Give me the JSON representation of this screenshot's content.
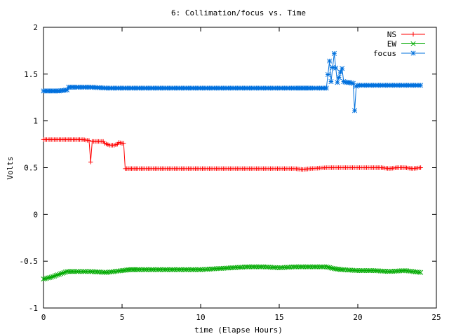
{
  "chart_data": {
    "type": "line",
    "title": "6: Collimation/focus vs. Time",
    "xlabel": "time (Elapse Hours)",
    "ylabel": "Volts",
    "xlim": [
      0,
      25
    ],
    "ylim": [
      -1,
      2
    ],
    "xticks": [
      "0",
      "5",
      "10",
      "15",
      "20",
      "25"
    ],
    "yticks": [
      "-1",
      "-0.5",
      "0",
      "0.5",
      "1",
      "1.5",
      "2"
    ],
    "legend_position": "top-right",
    "series": [
      {
        "name": "NS",
        "color": "#ff0000",
        "marker": "plus",
        "x": [
          0,
          0.5,
          1,
          1.5,
          2,
          2.5,
          2.9,
          3.0,
          3.1,
          3.5,
          3.8,
          3.9,
          4.2,
          4.5,
          4.7,
          4.8,
          5.0,
          5.1,
          5.2,
          5.5,
          6,
          7,
          8,
          9,
          10,
          11,
          12,
          13,
          14,
          15,
          16,
          16.5,
          17,
          18,
          19,
          20,
          21,
          21.5,
          22,
          22.5,
          23,
          23.5,
          24
        ],
        "y": [
          0.8,
          0.8,
          0.8,
          0.8,
          0.8,
          0.8,
          0.79,
          0.56,
          0.78,
          0.78,
          0.78,
          0.76,
          0.74,
          0.74,
          0.75,
          0.77,
          0.76,
          0.76,
          0.49,
          0.49,
          0.49,
          0.49,
          0.49,
          0.49,
          0.49,
          0.49,
          0.49,
          0.49,
          0.49,
          0.49,
          0.49,
          0.48,
          0.49,
          0.5,
          0.5,
          0.5,
          0.5,
          0.5,
          0.49,
          0.5,
          0.5,
          0.49,
          0.5
        ]
      },
      {
        "name": "EW",
        "color": "#00aa00",
        "marker": "cross",
        "x": [
          0,
          0.5,
          1,
          1.5,
          2,
          3,
          4,
          5,
          5.5,
          6,
          7,
          8,
          9,
          10,
          11,
          12,
          13,
          14,
          15,
          16,
          17,
          18,
          18.5,
          19,
          20,
          21,
          22,
          23,
          24
        ],
        "y": [
          -0.69,
          -0.67,
          -0.64,
          -0.61,
          -0.61,
          -0.61,
          -0.62,
          -0.6,
          -0.59,
          -0.59,
          -0.59,
          -0.59,
          -0.59,
          -0.59,
          -0.58,
          -0.57,
          -0.56,
          -0.56,
          -0.57,
          -0.56,
          -0.56,
          -0.56,
          -0.58,
          -0.59,
          -0.6,
          -0.6,
          -0.61,
          -0.6,
          -0.62
        ]
      },
      {
        "name": "focus",
        "color": "#0070dd",
        "marker": "star",
        "x": [
          0,
          0.5,
          1,
          1.5,
          1.6,
          2,
          3,
          4,
          5,
          6,
          7,
          8,
          9,
          10,
          11,
          12,
          13,
          14,
          15,
          16,
          16.5,
          17,
          17.8,
          18.0,
          18.2,
          18.3,
          18.5,
          18.7,
          18.9,
          19.0,
          19.1,
          19.3,
          19.5,
          19.7,
          19.8,
          19.9,
          20,
          21,
          22,
          23,
          24
        ],
        "y": [
          1.32,
          1.32,
          1.32,
          1.33,
          1.36,
          1.36,
          1.36,
          1.35,
          1.35,
          1.35,
          1.35,
          1.35,
          1.35,
          1.35,
          1.35,
          1.35,
          1.35,
          1.35,
          1.35,
          1.35,
          1.35,
          1.35,
          1.35,
          1.35,
          1.64,
          1.42,
          1.72,
          1.41,
          1.52,
          1.56,
          1.42,
          1.41,
          1.41,
          1.4,
          1.11,
          1.37,
          1.38,
          1.38,
          1.38,
          1.38,
          1.38
        ]
      }
    ]
  }
}
